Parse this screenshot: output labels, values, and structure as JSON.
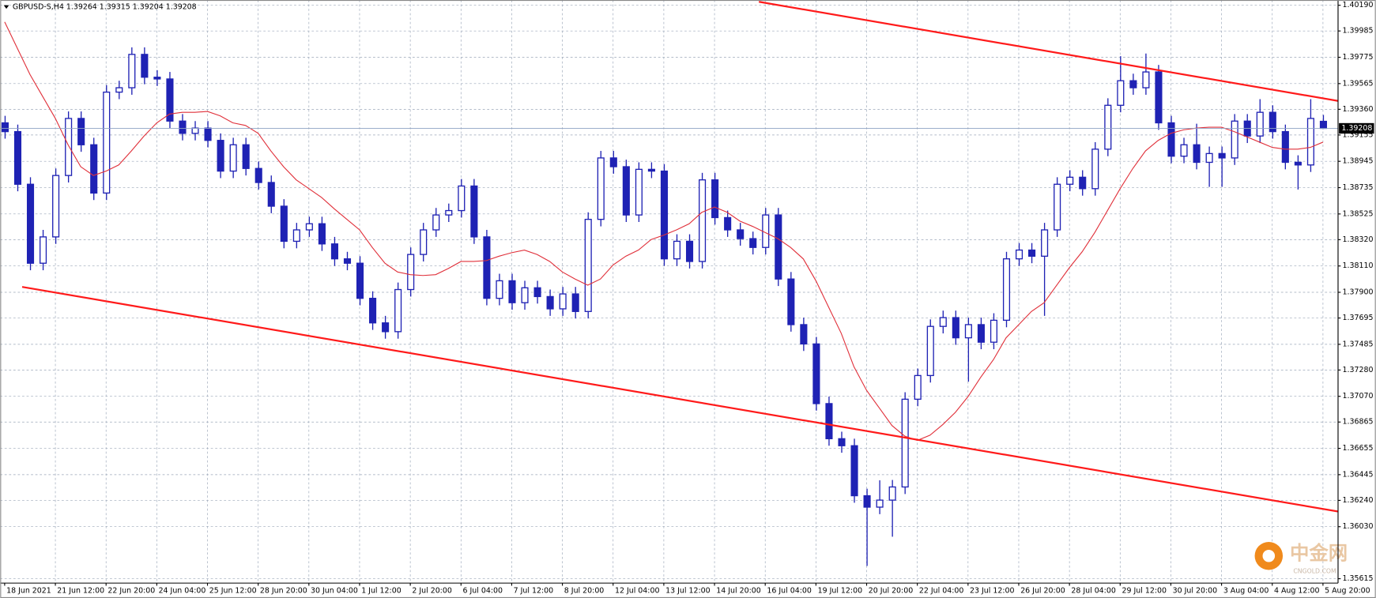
{
  "chart_data": {
    "type": "candlestick",
    "title": "GBPUSD-S,H4  1.39264 1.39315 1.39204 1.39208",
    "categories": [
      "18 Jun 2021",
      null,
      null,
      null,
      "21 Jun 12:00",
      null,
      null,
      null,
      "22 Jun 20:00",
      null,
      null,
      null,
      "24 Jun 04:00",
      null,
      null,
      null,
      "25 Jun 12:00",
      null,
      null,
      null,
      "28 Jun 20:00",
      null,
      null,
      null,
      "30 Jun 04:00",
      null,
      null,
      null,
      "1 Jul 12:00",
      null,
      null,
      null,
      "2 Jul 20:00",
      null,
      null,
      null,
      "6 Jul 04:00",
      null,
      null,
      null,
      "7 Jul 12:00",
      null,
      null,
      null,
      "8 Jul 20:00",
      null,
      null,
      null,
      "12 Jul 04:00",
      null,
      null,
      null,
      "13 Jul 12:00",
      null,
      null,
      null,
      "14 Jul 20:00",
      null,
      null,
      null,
      "16 Jul 04:00",
      null,
      null,
      null,
      "19 Jul 12:00",
      null,
      null,
      null,
      "20 Jul 20:00",
      null,
      null,
      null,
      "22 Jul 04:00",
      null,
      null,
      null,
      "23 Jul 12:00",
      null,
      null,
      null,
      "26 Jul 20:00",
      null,
      null,
      null,
      "28 Jul 04:00",
      null,
      null,
      null,
      "29 Jul 12:00",
      null,
      null,
      null,
      "30 Jul 20:00",
      null,
      null,
      null,
      "3 Aug 04:00",
      null,
      null,
      null,
      "4 Aug 12:00",
      null,
      null,
      null,
      "5 Aug 20:00"
    ],
    "open": [
      1.39252,
      1.39182,
      1.38762,
      1.38132,
      1.38342,
      1.38832,
      1.39287,
      1.39077,
      1.38692,
      1.39497,
      1.39532,
      1.39798,
      1.39616,
      1.39602,
      1.39266,
      1.39168,
      1.3921,
      1.39112,
      1.38867,
      1.39077,
      1.38888,
      1.38776,
      1.38587,
      1.38307,
      1.38398,
      1.38447,
      1.38286,
      1.38167,
      1.38132,
      1.37852,
      1.37656,
      1.37586,
      1.37922,
      1.38202,
      1.38398,
      1.38517,
      1.38552,
      1.38748,
      1.38342,
      1.37852,
      1.37992,
      1.37817,
      1.37936,
      1.37866,
      1.37768,
      1.37887,
      1.37747,
      1.38482,
      1.38972,
      1.38902,
      1.38517,
      1.38881,
      1.38867,
      1.38167,
      1.38307,
      1.38146,
      1.38797,
      1.38496,
      1.38398,
      1.38328,
      1.38258,
      1.38517,
      1.38006,
      1.37642,
      1.37488,
      1.37012,
      1.36732,
      1.36676,
      1.36277,
      1.36186,
      1.36242,
      1.36347,
      1.37047,
      1.37236,
      1.37628,
      1.37698,
      1.37537,
      1.37642,
      1.37502,
      1.37677,
      1.38167,
      1.38237,
      1.38188,
      1.38398,
      1.38762,
      1.38818,
      1.38727,
      1.39042,
      1.39392,
      1.39588,
      1.39532,
      1.39658,
      1.39252,
      1.38986,
      1.39077,
      1.38937,
      1.39007,
      1.38972,
      1.39266,
      1.39147,
      1.39336,
      1.39182,
      1.38937,
      1.38916,
      1.39264
    ],
    "high": [
      1.39308,
      1.39238,
      1.38818,
      1.38398,
      1.38888,
      1.39343,
      1.39343,
      1.39133,
      1.39553,
      1.39588,
      1.39854,
      1.39854,
      1.39672,
      1.39658,
      1.39322,
      1.39266,
      1.39266,
      1.39168,
      1.39133,
      1.39133,
      1.38944,
      1.38832,
      1.38643,
      1.38454,
      1.38503,
      1.38503,
      1.38342,
      1.38223,
      1.38188,
      1.37908,
      1.37712,
      1.37978,
      1.38258,
      1.38454,
      1.38573,
      1.38608,
      1.38804,
      1.38804,
      1.38398,
      1.38048,
      1.38048,
      1.37992,
      1.37992,
      1.37922,
      1.37943,
      1.37943,
      1.38538,
      1.39028,
      1.39028,
      1.38958,
      1.38937,
      1.38937,
      1.38923,
      1.38363,
      1.38363,
      1.38853,
      1.38853,
      1.38552,
      1.38454,
      1.38384,
      1.38573,
      1.38573,
      1.38062,
      1.37698,
      1.37544,
      1.37068,
      1.36788,
      1.36732,
      1.36333,
      1.364,
      1.36403,
      1.37103,
      1.37292,
      1.37684,
      1.37754,
      1.37754,
      1.37698,
      1.37698,
      1.37733,
      1.38223,
      1.38293,
      1.38293,
      1.38454,
      1.38818,
      1.38874,
      1.38874,
      1.39098,
      1.39448,
      1.39784,
      1.39644,
      1.39805,
      1.39714,
      1.39308,
      1.39133,
      1.39245,
      1.39063,
      1.39063,
      1.39322,
      1.39322,
      1.39441,
      1.39392,
      1.39238,
      1.38993,
      1.39441,
      1.39315
    ],
    "low": [
      1.39126,
      1.38706,
      1.38076,
      1.38076,
      1.38286,
      1.38776,
      1.39021,
      1.38636,
      1.38636,
      1.39441,
      1.39476,
      1.3956,
      1.39546,
      1.3921,
      1.39112,
      1.39112,
      1.39056,
      1.38811,
      1.38811,
      1.38832,
      1.3872,
      1.38531,
      1.38251,
      1.38251,
      1.38342,
      1.3823,
      1.38111,
      1.38076,
      1.37796,
      1.376,
      1.3753,
      1.3753,
      1.37866,
      1.38146,
      1.38342,
      1.38461,
      1.38496,
      1.38286,
      1.37796,
      1.37796,
      1.37761,
      1.37761,
      1.3781,
      1.37712,
      1.37712,
      1.37691,
      1.37691,
      1.38426,
      1.38846,
      1.38461,
      1.38461,
      1.38811,
      1.38111,
      1.38111,
      1.3809,
      1.3809,
      1.3844,
      1.38342,
      1.38272,
      1.38202,
      1.38202,
      1.3795,
      1.37586,
      1.37432,
      1.36956,
      1.36676,
      1.3662,
      1.36221,
      1.35717,
      1.3613,
      1.3595,
      1.36291,
      1.36991,
      1.3718,
      1.37572,
      1.37481,
      1.37187,
      1.37446,
      1.37446,
      1.37621,
      1.38111,
      1.38132,
      1.37712,
      1.38342,
      1.38706,
      1.38671,
      1.38671,
      1.38986,
      1.39336,
      1.39476,
      1.39476,
      1.39196,
      1.3893,
      1.3893,
      1.38881,
      1.38741,
      1.38741,
      1.38916,
      1.39091,
      1.39091,
      1.39126,
      1.38881,
      1.3872,
      1.3886,
      1.39204
    ],
    "close": [
      1.39182,
      1.38762,
      1.38132,
      1.38342,
      1.38832,
      1.39287,
      1.39077,
      1.38692,
      1.39497,
      1.39532,
      1.39798,
      1.39616,
      1.39602,
      1.39266,
      1.39168,
      1.3921,
      1.39112,
      1.38867,
      1.39077,
      1.38888,
      1.38776,
      1.38587,
      1.38307,
      1.38398,
      1.38447,
      1.38286,
      1.38167,
      1.38132,
      1.37852,
      1.37656,
      1.37586,
      1.37922,
      1.38202,
      1.38398,
      1.38517,
      1.38552,
      1.38748,
      1.38342,
      1.37852,
      1.37992,
      1.37817,
      1.37936,
      1.37866,
      1.37768,
      1.37887,
      1.37747,
      1.38482,
      1.38972,
      1.38902,
      1.38517,
      1.38881,
      1.38867,
      1.38167,
      1.38307,
      1.38146,
      1.38797,
      1.38496,
      1.38398,
      1.38328,
      1.38258,
      1.38517,
      1.38006,
      1.37642,
      1.37488,
      1.37012,
      1.36732,
      1.36676,
      1.36277,
      1.36186,
      1.36242,
      1.36347,
      1.37047,
      1.37236,
      1.37628,
      1.37698,
      1.37537,
      1.37642,
      1.37502,
      1.37677,
      1.38167,
      1.38237,
      1.38188,
      1.38398,
      1.38762,
      1.38818,
      1.38727,
      1.39042,
      1.39392,
      1.39588,
      1.39532,
      1.39658,
      1.39252,
      1.38986,
      1.39077,
      1.38937,
      1.39007,
      1.38972,
      1.39266,
      1.39147,
      1.39336,
      1.39182,
      1.38937,
      1.38916,
      1.39287,
      1.39208
    ],
    "up_color": "#ffffff",
    "down_color": "#1f22b4",
    "moving_average": {
      "color": "#e0303a",
      "values": [
        1.40057,
        1.39847,
        1.39637,
        1.39462,
        1.39287,
        1.39077,
        1.38902,
        1.38832,
        1.38867,
        1.38916,
        1.39028,
        1.39147,
        1.39252,
        1.39322,
        1.39336,
        1.39336,
        1.39343,
        1.39308,
        1.39252,
        1.39231,
        1.39168,
        1.39028,
        1.38902,
        1.38797,
        1.38727,
        1.38657,
        1.38566,
        1.38482,
        1.38398,
        1.38258,
        1.38132,
        1.38062,
        1.38041,
        1.38034,
        1.38041,
        1.3809,
        1.38146,
        1.38146,
        1.38153,
        1.38188,
        1.38216,
        1.38237,
        1.38202,
        1.38146,
        1.38062,
        1.38006,
        1.37957,
        1.38006,
        1.38118,
        1.38188,
        1.38237,
        1.38321,
        1.38356,
        1.38398,
        1.38447,
        1.38538,
        1.3858,
        1.38538,
        1.38468,
        1.38426,
        1.38377,
        1.38328,
        1.38258,
        1.38167,
        1.37992,
        1.37782,
        1.37572,
        1.37306,
        1.37117,
        1.36977,
        1.36837,
        1.36753,
        1.36718,
        1.3676,
        1.36844,
        1.36942,
        1.37068,
        1.37222,
        1.37362,
        1.37537,
        1.37642,
        1.37747,
        1.37817,
        1.37957,
        1.38097,
        1.38223,
        1.38377,
        1.38552,
        1.38727,
        1.38888,
        1.39028,
        1.39112,
        1.39168,
        1.39196,
        1.3921,
        1.39217,
        1.39217,
        1.39182,
        1.3914,
        1.39098,
        1.39056,
        1.39042,
        1.39042,
        1.39056,
        1.39098
      ]
    },
    "trendlines": [
      {
        "color": "#ff1a1a",
        "x": [
          59.5,
          105.19
        ],
        "y": [
          1.40218,
          1.39427
        ]
      },
      {
        "color": "#ff1a1a",
        "x": [
          1.38,
          105.19
        ],
        "y": [
          1.37943,
          1.36151
        ]
      }
    ],
    "current_price": 1.39208,
    "xlim": [
      -0.35,
      105.19
    ],
    "ylim": [
      1.3558,
      1.40232
    ],
    "yticks": [
      {
        "value": 1.4019,
        "label": "1.40190"
      },
      1.39985,
      1.39775,
      1.39565,
      {
        "value": 1.3936,
        "label": "1.39360"
      },
      1.39155,
      1.38945,
      1.38735,
      1.38525,
      {
        "value": 1.3832,
        "label": "1.38320"
      },
      {
        "value": 1.3811,
        "label": "1.38110"
      },
      {
        "value": 1.379,
        "label": "1.37900"
      },
      1.37695,
      1.37485,
      {
        "value": 1.3728,
        "label": "1.37280"
      },
      {
        "value": 1.3707,
        "label": "1.37070"
      },
      1.36865,
      1.36655,
      1.36445,
      {
        "value": 1.3624,
        "label": "1.36240"
      },
      {
        "value": 1.3603,
        "label": "1.36030"
      },
      1.35615
    ],
    "grid": true,
    "watermark": {
      "name": "中金网",
      "site": "CNGOLD.COM"
    }
  }
}
